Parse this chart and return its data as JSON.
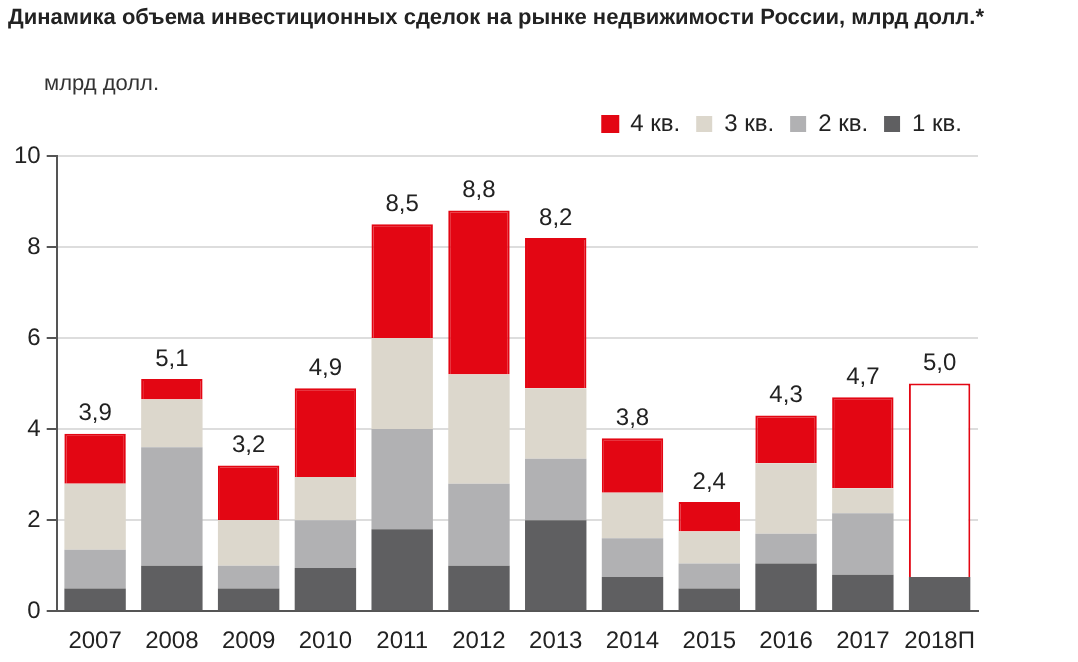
{
  "chart_data": {
    "type": "bar",
    "title": "Динамика объема инвестиционных сделок на рынке недвижимости России, млрд долл.*",
    "ylabel": "млрд долл.",
    "stacked": true,
    "categories": [
      "2007",
      "2008",
      "2009",
      "2010",
      "2011",
      "2012",
      "2013",
      "2014",
      "2015",
      "2016",
      "2017",
      "2018П"
    ],
    "series": [
      {
        "name": "1 кв.",
        "color": "#5f5f61",
        "values": [
          0.5,
          1.0,
          0.5,
          0.95,
          1.8,
          1.0,
          2.0,
          0.75,
          0.5,
          1.05,
          0.8,
          0.75
        ]
      },
      {
        "name": "2 кв.",
        "color": "#b1b1b3",
        "values": [
          0.85,
          2.6,
          0.5,
          1.05,
          2.2,
          1.8,
          1.35,
          0.85,
          0.55,
          0.65,
          1.35,
          null
        ]
      },
      {
        "name": "3 кв.",
        "color": "#dcd7cc",
        "values": [
          1.45,
          1.05,
          1.0,
          0.95,
          2.0,
          2.4,
          1.55,
          1.0,
          0.7,
          1.55,
          0.55,
          null
        ]
      },
      {
        "name": "4 кв.",
        "color": "#e30613",
        "colors": [
          "#e30613",
          "#e30613",
          "#e30613",
          "#e30613",
          "#e30613",
          "#e30613",
          "#e30613",
          "#e30613",
          "#e30613",
          "#e30613",
          "#e30613",
          "#ffffff"
        ],
        "values": [
          1.1,
          0.45,
          1.2,
          1.95,
          2.5,
          3.6,
          3.3,
          1.2,
          0.65,
          1.05,
          2.0,
          4.25
        ]
      }
    ],
    "totals": [
      "3,9",
      "5,1",
      "3,2",
      "4,9",
      "8,5",
      "8,8",
      "8,2",
      "3,8",
      "2,4",
      "4,3",
      "4,7",
      "5,0"
    ],
    "ylim": [
      0,
      10
    ],
    "yticks": [
      0,
      2,
      4,
      6,
      8,
      10
    ],
    "grid": "y",
    "legend": "top right"
  }
}
